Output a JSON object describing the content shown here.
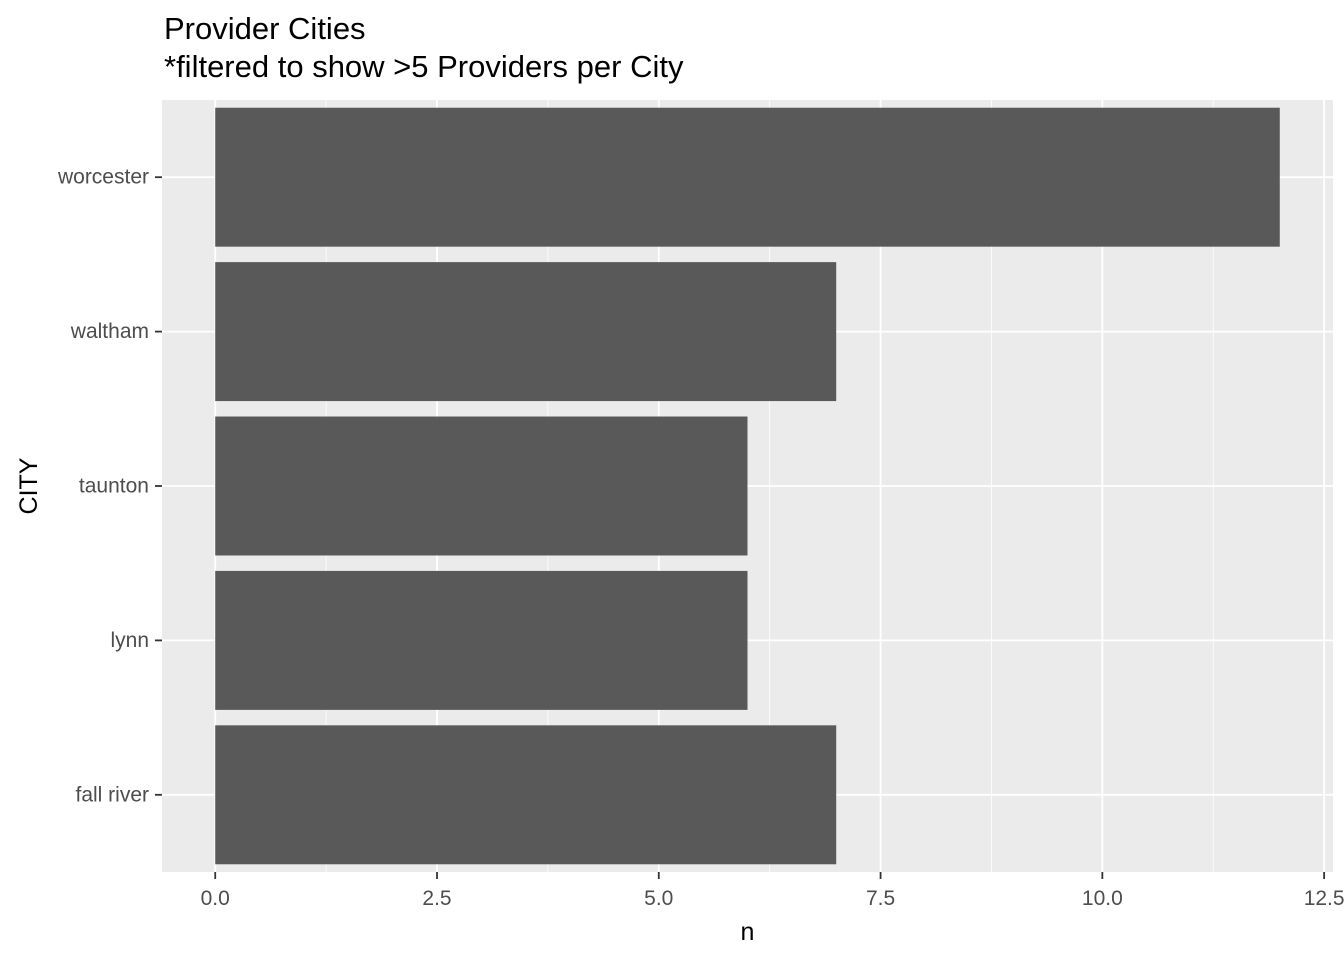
{
  "chart_data": {
    "type": "bar",
    "orientation": "horizontal",
    "title": "Provider Cities",
    "subtitle": "*filtered to show >5 Providers per City",
    "xlabel": "n",
    "ylabel": "CITY",
    "categories": [
      "worcester",
      "waltham",
      "taunton",
      "lynn",
      "fall river"
    ],
    "values": [
      12,
      7,
      6,
      6,
      7
    ],
    "xlim": [
      -0.6,
      12.6
    ],
    "xticks": [
      0,
      2.5,
      5,
      7.5,
      10,
      12.5
    ],
    "xtick_labels": [
      "0.0",
      "2.5",
      "5.0",
      "7.5",
      "10.0",
      "12.5"
    ],
    "grid": true,
    "legend": "none",
    "colors": {
      "bar": "#595959",
      "panel": "#ebebeb",
      "grid": "#ffffff",
      "tick_text": "#4d4d4d",
      "tick_mark": "#333333"
    }
  }
}
